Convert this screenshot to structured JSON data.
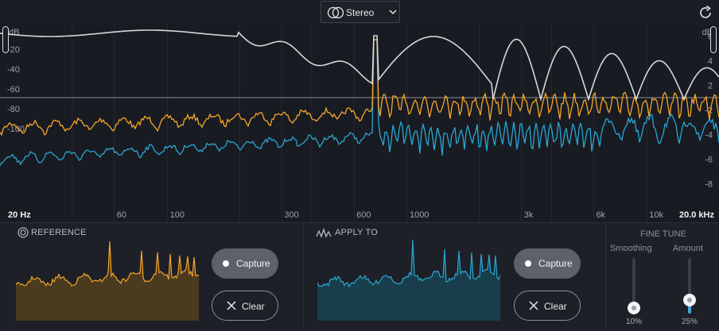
{
  "topbar": {
    "channel_mode": "Stereo"
  },
  "spectrum": {
    "db_label_left": "dB",
    "db_ticks_left": [
      "-20",
      "-40",
      "-60",
      "-80",
      "-100"
    ],
    "db_label_right": "dB",
    "db_ticks_right": [
      "2",
      "4",
      "6",
      "8"
    ],
    "freq_start": "20 Hz",
    "freq_ticks": [
      "60",
      "100",
      "300",
      "600",
      "1000",
      "3k",
      "6k",
      "10k"
    ],
    "freq_end": "20.0 kHz",
    "colors": {
      "reference": "#f5a52a",
      "apply_to": "#2aa6d4",
      "eq_curve": "#d6d8dc"
    }
  },
  "reference": {
    "title": "REFERENCE",
    "capture_label": "Capture",
    "clear_label": "Clear"
  },
  "apply_to": {
    "title": "APPLY TO",
    "capture_label": "Capture",
    "clear_label": "Clear"
  },
  "fine_tune": {
    "title": "FINE TUNE",
    "smoothing": {
      "label": "Smoothing",
      "value": 10,
      "display": "10%"
    },
    "amount": {
      "label": "Amount",
      "value": 25,
      "display": "25%"
    }
  }
}
